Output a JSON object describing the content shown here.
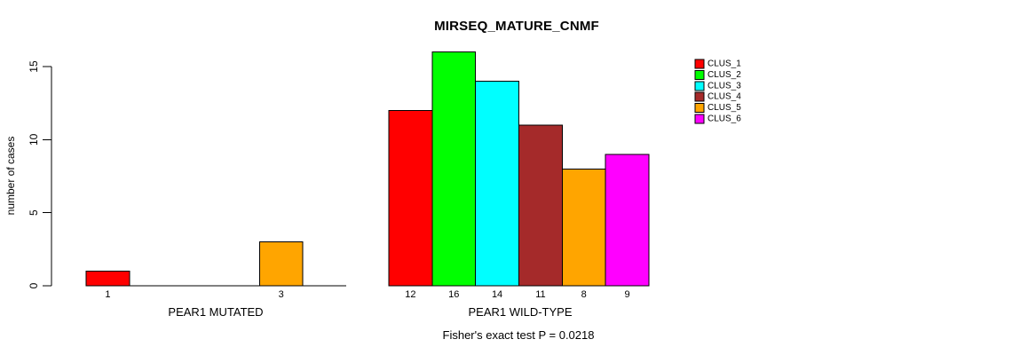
{
  "title": "MIRSEQ_MATURE_CNMF",
  "chart_data": {
    "type": "bar",
    "title": "MIRSEQ_MATURE_CNMF",
    "ylabel": "number of cases",
    "xlabel": "",
    "ylim": [
      0,
      16
    ],
    "yticks": [
      0,
      5,
      10,
      15
    ],
    "grid": false,
    "legend_position": "right",
    "categories": [
      "CLUS_1",
      "CLUS_2",
      "CLUS_3",
      "CLUS_4",
      "CLUS_5",
      "CLUS_6"
    ],
    "colors": [
      "#FF0000",
      "#00FF00",
      "#00FFFF",
      "#A52A2A",
      "#FFA500",
      "#FF00FF"
    ],
    "groups": [
      {
        "label": "PEAR1 MUTATED",
        "values": [
          1,
          0,
          0,
          0,
          3,
          0
        ],
        "value_labels": [
          "1",
          "",
          "",
          "",
          "3",
          ""
        ]
      },
      {
        "label": "PEAR1 WILD-TYPE",
        "values": [
          12,
          16,
          14,
          11,
          8,
          9
        ],
        "value_labels": [
          "12",
          "16",
          "14",
          "11",
          "8",
          "9"
        ]
      }
    ],
    "annotation": "Fisher's exact test P = 0.0218"
  }
}
